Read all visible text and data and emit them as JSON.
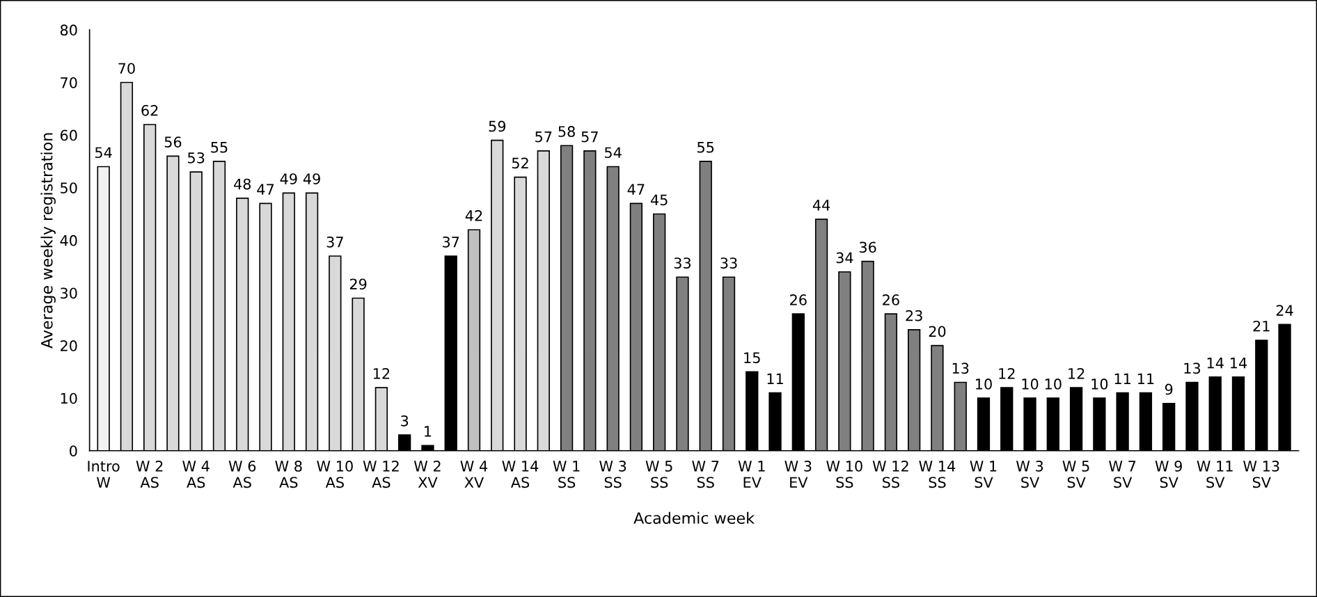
{
  "chart_data": {
    "type": "bar",
    "xlabel": "Academic week",
    "ylabel": "Average weekly registration",
    "categories": [
      "Intro\nW",
      null,
      "W 2\nAS",
      null,
      "W 4\nAS",
      null,
      "W 6\nAS",
      null,
      "W 8\nAS",
      null,
      "W 10\nAS",
      null,
      "W 12\nAS",
      null,
      "W 2\nXV",
      null,
      "W 4\nXV",
      null,
      "W 14\nAS",
      null,
      "W 1\nSS",
      null,
      "W 3\nSS",
      null,
      "W 5\nSS",
      null,
      "W 7\nSS",
      null,
      "W 1\nEV",
      null,
      "W 3\nEV",
      null,
      "W 10\nSS",
      null,
      "W 12\nSS",
      null,
      "W 14\nSS",
      null,
      "W 1\nSV",
      null,
      "W 3\nSV",
      null,
      "W 5\nSV",
      null,
      "W 7\nSV",
      null,
      "W 9\nSV",
      null,
      "W 11\nSV",
      null,
      "W 13\nSV",
      null
    ],
    "values": [
      54,
      70,
      62,
      56,
      53,
      55,
      48,
      47,
      49,
      49,
      37,
      29,
      12,
      3,
      1,
      37,
      42,
      59,
      52,
      57,
      58,
      57,
      54,
      47,
      45,
      33,
      55,
      33,
      15,
      11,
      26,
      44,
      34,
      36,
      26,
      23,
      20,
      13,
      10,
      12,
      10,
      10,
      12,
      10,
      11,
      11,
      9,
      13,
      14,
      14,
      21,
      24
    ],
    "colors": [
      "#f2f2f2",
      "#d9d9d9",
      "#d9d9d9",
      "#d9d9d9",
      "#d9d9d9",
      "#d9d9d9",
      "#d9d9d9",
      "#d9d9d9",
      "#d9d9d9",
      "#d9d9d9",
      "#d9d9d9",
      "#d9d9d9",
      "#d9d9d9",
      "#000000",
      "#000000",
      "#000000",
      "#bfbfbf",
      "#d9d9d9",
      "#d9d9d9",
      "#d9d9d9",
      "#808080",
      "#808080",
      "#808080",
      "#808080",
      "#808080",
      "#808080",
      "#808080",
      "#808080",
      "#000000",
      "#000000",
      "#000000",
      "#808080",
      "#808080",
      "#808080",
      "#808080",
      "#808080",
      "#808080",
      "#808080",
      "#000000",
      "#000000",
      "#000000",
      "#000000",
      "#000000",
      "#000000",
      "#000000",
      "#000000",
      "#000000",
      "#000000",
      "#000000",
      "#000000",
      "#000000",
      "#000000"
    ],
    "ylim": [
      0,
      80
    ],
    "yticks": [
      0,
      10,
      20,
      30,
      40,
      50,
      60,
      70,
      80
    ],
    "data_labels": true,
    "grid": false,
    "legend": false
  }
}
